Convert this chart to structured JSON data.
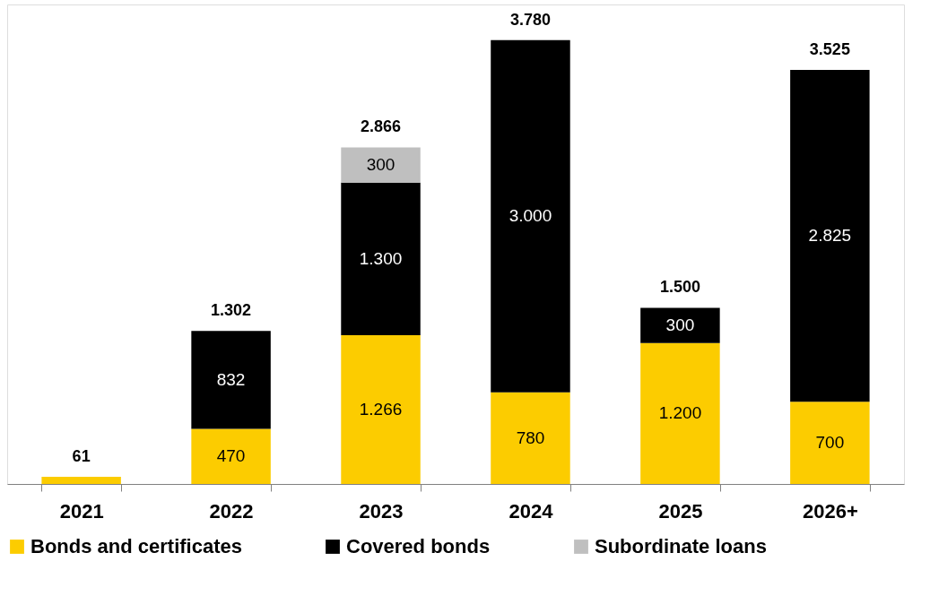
{
  "chart_data": {
    "type": "bar",
    "stacked": true,
    "categories": [
      "2021",
      "2022",
      "2023",
      "2024",
      "2025",
      "2026+"
    ],
    "series": [
      {
        "name": "Bonds and certificates",
        "color": "#fccc00",
        "values": [
          61,
          470,
          1266,
          780,
          1200,
          700
        ],
        "value_labels": [
          null,
          "470",
          "1.266",
          "780",
          "1.200",
          "700"
        ]
      },
      {
        "name": "Covered bonds",
        "color": "#000000",
        "values": [
          null,
          832,
          1300,
          3000,
          300,
          2825
        ],
        "value_labels": [
          null,
          "832",
          "1.300",
          "3.000",
          "300",
          "2.825"
        ]
      },
      {
        "name": "Subordinate loans",
        "color": "#bfbfbf",
        "values": [
          null,
          null,
          300,
          null,
          null,
          null
        ],
        "value_labels": [
          null,
          null,
          "300",
          null,
          null,
          null
        ]
      }
    ],
    "totals": [
      "61",
      "1.302",
      "2.866",
      "3.780",
      "1.500",
      "3.525"
    ],
    "legend": "bottom",
    "grid": false
  }
}
